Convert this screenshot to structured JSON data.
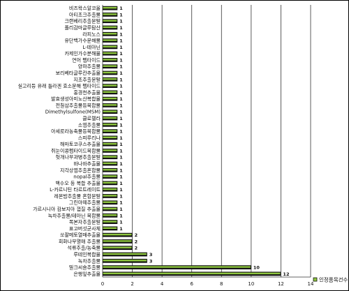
{
  "chart_data": {
    "type": "bar",
    "orientation": "horizontal",
    "categories": [
      "비즈왁스알코올",
      "아티초크추출물",
      "크랜베리추출분말",
      "폴리감마글루탐산",
      "라피노스",
      "유단백가수분해물",
      "L-테아닌",
      "카제인가수분해물",
      "연어 펩타이드",
      "양파추출물",
      "보리베타글루칸추출물",
      "지초추출분말",
      "실고리등 유래 틀라겐 효소분해 펩타이드",
      "홍경천추출물",
      "발효생성아미노산복합물",
      "전칠삼추출물등복합물",
      "Dimethylsulfone(MSM)",
      "클로렐라",
      "소엽추출물",
      "아세로라농축물등복합물",
      "스피루리나",
      "해마토코쿠스추출물",
      "쥐눈이콩펩타이드복합물",
      "헛개나무과병추출분말",
      "바나바추출물",
      "지각상엽추출혼합물",
      "nopal추출물",
      "백수오 등 복합 추출물",
      "L-카르니틴 타르트레이트",
      "레몬밤추출물 혼합분말",
      "그린마떼추출물",
      "가르시니아 캄보지아 껍질 추출물",
      "녹차추출물/테아닌 복합물",
      "목본자추출분말",
      "표고버섯균사체",
      "쏘팔메토열매추출물",
      "회화나무열매 추출물",
      "석류추출/농축물",
      "루테인복합물",
      "녹차추출물",
      "밀크씨슬추출물",
      "은행잎추출물"
    ],
    "series": [
      {
        "name": "인정품목건수",
        "values": [
          1,
          1,
          1,
          1,
          1,
          1,
          1,
          1,
          1,
          1,
          1,
          1,
          1,
          1,
          1,
          1,
          1,
          1,
          1,
          1,
          1,
          1,
          1,
          1,
          1,
          1,
          1,
          1,
          1,
          1,
          1,
          1,
          1,
          1,
          1,
          2,
          2,
          2,
          3,
          3,
          10,
          12
        ]
      }
    ],
    "xlim": [
      0,
      14
    ],
    "xticks": [
      0,
      2,
      4,
      6,
      8,
      10,
      12,
      14
    ],
    "grid": true,
    "legend_position": "bottom-right",
    "colors": {
      "bar_fill": "#8ec63f",
      "bar_dark": "#111111",
      "grid": "#333333"
    }
  }
}
